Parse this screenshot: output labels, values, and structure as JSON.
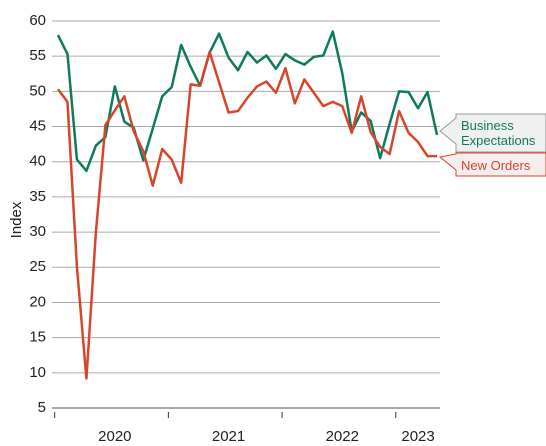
{
  "chart_data": {
    "type": "line",
    "y_label": "Index",
    "categories": [
      null,
      null,
      null,
      null,
      null,
      null,
      "2020",
      null,
      null,
      null,
      null,
      null,
      null,
      null,
      null,
      null,
      null,
      null,
      "2021",
      null,
      null,
      null,
      null,
      null,
      null,
      null,
      null,
      null,
      null,
      null,
      "2022",
      null,
      null,
      null,
      null,
      null,
      null,
      null,
      "2023",
      null,
      null
    ],
    "series": [
      {
        "name": "Business Expectations",
        "color": "#0e7a5e",
        "values": [
          58,
          55.3,
          40.3,
          38.7,
          42.3,
          43.5,
          50.7,
          45.7,
          44.8,
          40.2,
          44.7,
          49.3,
          50.6,
          56.6,
          53.5,
          50.8,
          55.5,
          58.2,
          54.8,
          53,
          55.6,
          54.1,
          55.1,
          53.2,
          55.3,
          54.4,
          53.8,
          54.9,
          55.1,
          58.5,
          52.6,
          44.3,
          47,
          45.8,
          40.5,
          45.4,
          50,
          49.9,
          47.6,
          49.9,
          43.8
        ]
      },
      {
        "name": "New Orders",
        "color": "#d9452a",
        "values": [
          50.3,
          48.5,
          25,
          9.2,
          30,
          45.2,
          47.3,
          49.3,
          44.3,
          41.5,
          36.6,
          41.8,
          40.3,
          37,
          51,
          50.8,
          55.6,
          51.3,
          47,
          47.2,
          49.1,
          50.7,
          51.4,
          49.8,
          53.3,
          48.3,
          51.7,
          49.8,
          47.9,
          48.5,
          47.9,
          44.1,
          49.3,
          44.2,
          42.1,
          41.1,
          47.2,
          44.1,
          42.8,
          40.8,
          40.8
        ]
      }
    ],
    "ylim": [
      5,
      60
    ],
    "yticks": [
      5,
      10,
      15,
      20,
      25,
      30,
      35,
      40,
      45,
      50,
      55,
      60
    ],
    "grid": true
  }
}
